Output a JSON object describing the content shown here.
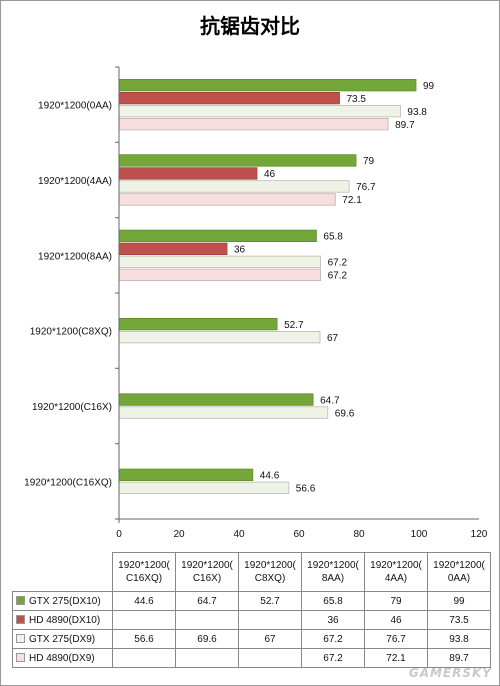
{
  "chart_data": {
    "type": "bar",
    "orientation": "horizontal",
    "title": "抗锯齿对比",
    "categories": [
      "1920*1200(0AA)",
      "1920*1200(4AA)",
      "1920*1200(8AA)",
      "1920*1200(C8XQ)",
      "1920*1200(C16X)",
      "1920*1200(C16XQ)"
    ],
    "table_headers": [
      [
        "1920*1200(",
        "C16XQ)"
      ],
      [
        "1920*1200(",
        "C16X)"
      ],
      [
        "1920*1200(",
        "C8XQ)"
      ],
      [
        "1920*1200(",
        "8AA)"
      ],
      [
        "1920*1200(",
        "4AA)"
      ],
      [
        "1920*1200(",
        "0AA)"
      ]
    ],
    "series": [
      {
        "name": "GTX 275(DX10)",
        "color": "#73a73a",
        "values": [
          99,
          79,
          65.8,
          52.7,
          64.7,
          44.6
        ]
      },
      {
        "name": "HD 4890(DX10)",
        "color": "#c0504d",
        "values": [
          73.5,
          46,
          36,
          null,
          null,
          null
        ]
      },
      {
        "name": "GTX 275(DX9)",
        "color": "#eef3e6",
        "values": [
          93.8,
          76.7,
          67.2,
          67,
          69.6,
          56.6
        ]
      },
      {
        "name": "HD 4890(DX9)",
        "color": "#f7dfdf",
        "values": [
          89.7,
          72.1,
          67.2,
          null,
          null,
          null
        ]
      }
    ],
    "xlim": [
      0,
      120
    ],
    "x_ticks": [
      0,
      20,
      40,
      60,
      80,
      100,
      120
    ],
    "grid": false,
    "legend": "data table below chart"
  },
  "watermark": "GAMERSKY"
}
